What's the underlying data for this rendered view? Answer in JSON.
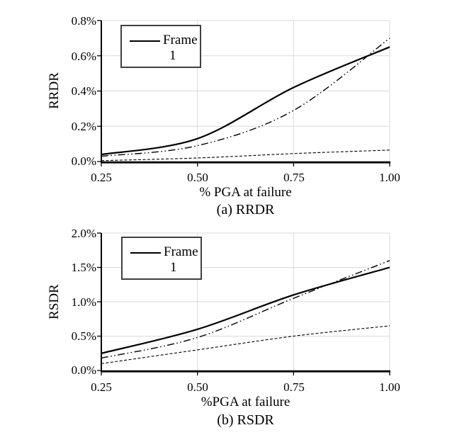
{
  "page": {
    "background": "#ffffff"
  },
  "colors": {
    "line": "#000000",
    "grid": "#d9d9d9",
    "axis": "#000000",
    "legend_border": "#404040",
    "text": "#000000"
  },
  "chart_data": [
    {
      "type": "line",
      "caption": "(a) RRDR",
      "xlabel": "% PGA at failure",
      "ylabel": "RRDR",
      "x": [
        0.25,
        0.5,
        0.75,
        1.0
      ],
      "x_tick_labels": [
        "0.25",
        "0.50",
        "0.75",
        "1.00"
      ],
      "y_tick_labels": [
        "0.0%",
        "0.2%",
        "0.4%",
        "0.6%",
        "0.8%"
      ],
      "xlim": [
        0.25,
        1.0
      ],
      "ylim": [
        0,
        0.8
      ],
      "grid": true,
      "legend": {
        "position": "top-left",
        "entries": [
          {
            "label": "Frame 1",
            "style": "solid"
          }
        ],
        "label_lines": [
          "Frame",
          "1"
        ]
      },
      "series": [
        {
          "name": "Frame 1",
          "style": "solid",
          "values_pct": [
            0.04,
            0.13,
            0.42,
            0.65
          ]
        },
        {
          "name": "dash-dot-dot line",
          "style": "dash-dot-dot",
          "values_pct": [
            0.03,
            0.09,
            0.29,
            0.7
          ]
        },
        {
          "name": "dashed line",
          "style": "dashed",
          "values_pct": [
            0.005,
            0.02,
            0.045,
            0.065
          ]
        }
      ]
    },
    {
      "type": "line",
      "caption": "(b) RSDR",
      "xlabel": "%PGA at failure",
      "ylabel": "RSDR",
      "x": [
        0.25,
        0.5,
        0.75,
        1.0
      ],
      "x_tick_labels": [
        "0.25",
        "0.50",
        "0.75",
        "1.00"
      ],
      "y_tick_labels": [
        "0.0%",
        "0.5%",
        "1.0%",
        "1.5%",
        "2.0%"
      ],
      "xlim": [
        0.25,
        1.0
      ],
      "ylim": [
        0,
        2.0
      ],
      "grid": true,
      "legend": {
        "position": "top-left",
        "entries": [
          {
            "label": "Frame 1",
            "style": "solid"
          }
        ],
        "label_lines": [
          "Frame",
          "1"
        ]
      },
      "series": [
        {
          "name": "Frame 1",
          "style": "solid",
          "values_pct": [
            0.25,
            0.6,
            1.1,
            1.5
          ]
        },
        {
          "name": "dash-dot-dot line",
          "style": "dash-dot-dot",
          "values_pct": [
            0.18,
            0.48,
            1.05,
            1.6
          ]
        },
        {
          "name": "dashed line",
          "style": "dashed",
          "values_pct": [
            0.1,
            0.3,
            0.5,
            0.65
          ]
        }
      ]
    }
  ]
}
